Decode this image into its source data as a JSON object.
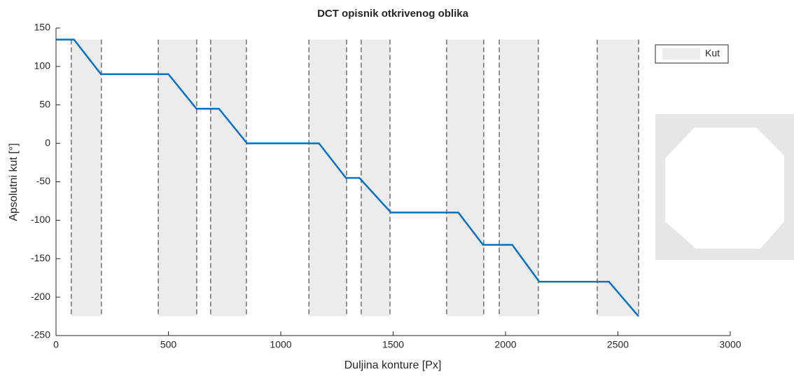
{
  "chart_data": {
    "type": "line",
    "title": "DCT opisnik otkrivenog oblika",
    "x_label": "Duljina konture [Px]",
    "y_label": "Apsolutni kut [°]",
    "x": [
      0,
      80,
      200,
      500,
      625,
      725,
      850,
      1170,
      1290,
      1350,
      1490,
      1790,
      1900,
      2030,
      2150,
      2460,
      2592
    ],
    "series": [
      {
        "color": "#0072bd",
        "values": [
          135,
          135,
          90,
          90,
          45,
          45,
          0,
          0,
          -45,
          -45,
          -90,
          -90,
          -132,
          -132,
          -180,
          -180,
          -225
        ]
      }
    ],
    "regions": {
      "name": "Kut",
      "color": "#ececec",
      "ylim": [
        -225,
        135
      ],
      "ranges": [
        [
          68,
          202
        ],
        [
          455,
          626
        ],
        [
          688,
          847
        ],
        [
          1125,
          1293
        ],
        [
          1358,
          1486
        ],
        [
          1738,
          1903
        ],
        [
          1972,
          2146
        ],
        [
          2408,
          2592
        ]
      ]
    },
    "xlim": [
      0,
      3000
    ],
    "xticks": [
      0,
      500,
      1000,
      1500,
      2000,
      2500,
      3000
    ],
    "ylim": [
      -250,
      150
    ],
    "yticks": [
      -250,
      -200,
      -150,
      -100,
      -50,
      0,
      50,
      100,
      150
    ],
    "legend_position": "top-right"
  }
}
